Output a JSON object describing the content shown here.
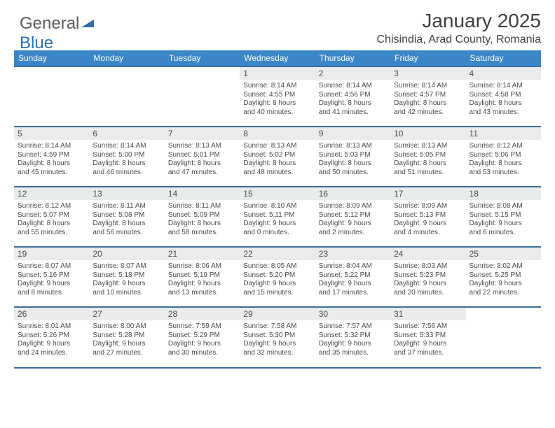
{
  "brand": {
    "part1": "General",
    "part2": "Blue",
    "triangle_color": "#2f6fb0",
    "text_color": "#5a5a5a"
  },
  "header": {
    "month_title": "January 2025",
    "location": "Chisindia, Arad County, Romania"
  },
  "theme": {
    "header_bg": "#3b86c6",
    "header_text": "#ffffff",
    "rule_color": "#3b6fa0",
    "daynum_bg": "#e9ebec",
    "body_text": "#4b4b4b",
    "page_bg": "#ffffff",
    "font_family": "Arial",
    "month_title_fontsize_pt": 21,
    "location_fontsize_pt": 12,
    "weekday_fontsize_pt": 9,
    "daynum_fontsize_pt": 9,
    "daytext_fontsize_pt": 7.5
  },
  "weekdays": [
    "Sunday",
    "Monday",
    "Tuesday",
    "Wednesday",
    "Thursday",
    "Friday",
    "Saturday"
  ],
  "weeks": [
    [
      {
        "empty": true
      },
      {
        "empty": true
      },
      {
        "empty": true
      },
      {
        "num": "1",
        "sunrise": "8:14 AM",
        "sunset": "4:55 PM",
        "daylight": "8 hours and 40 minutes."
      },
      {
        "num": "2",
        "sunrise": "8:14 AM",
        "sunset": "4:56 PM",
        "daylight": "8 hours and 41 minutes."
      },
      {
        "num": "3",
        "sunrise": "8:14 AM",
        "sunset": "4:57 PM",
        "daylight": "8 hours and 42 minutes."
      },
      {
        "num": "4",
        "sunrise": "8:14 AM",
        "sunset": "4:58 PM",
        "daylight": "8 hours and 43 minutes."
      }
    ],
    [
      {
        "num": "5",
        "sunrise": "8:14 AM",
        "sunset": "4:59 PM",
        "daylight": "8 hours and 45 minutes."
      },
      {
        "num": "6",
        "sunrise": "8:14 AM",
        "sunset": "5:00 PM",
        "daylight": "8 hours and 46 minutes."
      },
      {
        "num": "7",
        "sunrise": "8:13 AM",
        "sunset": "5:01 PM",
        "daylight": "8 hours and 47 minutes."
      },
      {
        "num": "8",
        "sunrise": "8:13 AM",
        "sunset": "5:02 PM",
        "daylight": "8 hours and 48 minutes."
      },
      {
        "num": "9",
        "sunrise": "8:13 AM",
        "sunset": "5:03 PM",
        "daylight": "8 hours and 50 minutes."
      },
      {
        "num": "10",
        "sunrise": "8:13 AM",
        "sunset": "5:05 PM",
        "daylight": "8 hours and 51 minutes."
      },
      {
        "num": "11",
        "sunrise": "8:12 AM",
        "sunset": "5:06 PM",
        "daylight": "8 hours and 53 minutes."
      }
    ],
    [
      {
        "num": "12",
        "sunrise": "8:12 AM",
        "sunset": "5:07 PM",
        "daylight": "8 hours and 55 minutes."
      },
      {
        "num": "13",
        "sunrise": "8:11 AM",
        "sunset": "5:08 PM",
        "daylight": "8 hours and 56 minutes."
      },
      {
        "num": "14",
        "sunrise": "8:11 AM",
        "sunset": "5:09 PM",
        "daylight": "8 hours and 58 minutes."
      },
      {
        "num": "15",
        "sunrise": "8:10 AM",
        "sunset": "5:11 PM",
        "daylight": "9 hours and 0 minutes."
      },
      {
        "num": "16",
        "sunrise": "8:09 AM",
        "sunset": "5:12 PM",
        "daylight": "9 hours and 2 minutes."
      },
      {
        "num": "17",
        "sunrise": "8:09 AM",
        "sunset": "5:13 PM",
        "daylight": "9 hours and 4 minutes."
      },
      {
        "num": "18",
        "sunrise": "8:08 AM",
        "sunset": "5:15 PM",
        "daylight": "9 hours and 6 minutes."
      }
    ],
    [
      {
        "num": "19",
        "sunrise": "8:07 AM",
        "sunset": "5:16 PM",
        "daylight": "9 hours and 8 minutes."
      },
      {
        "num": "20",
        "sunrise": "8:07 AM",
        "sunset": "5:18 PM",
        "daylight": "9 hours and 10 minutes."
      },
      {
        "num": "21",
        "sunrise": "8:06 AM",
        "sunset": "5:19 PM",
        "daylight": "9 hours and 13 minutes."
      },
      {
        "num": "22",
        "sunrise": "8:05 AM",
        "sunset": "5:20 PM",
        "daylight": "9 hours and 15 minutes."
      },
      {
        "num": "23",
        "sunrise": "8:04 AM",
        "sunset": "5:22 PM",
        "daylight": "9 hours and 17 minutes."
      },
      {
        "num": "24",
        "sunrise": "8:03 AM",
        "sunset": "5:23 PM",
        "daylight": "9 hours and 20 minutes."
      },
      {
        "num": "25",
        "sunrise": "8:02 AM",
        "sunset": "5:25 PM",
        "daylight": "9 hours and 22 minutes."
      }
    ],
    [
      {
        "num": "26",
        "sunrise": "8:01 AM",
        "sunset": "5:26 PM",
        "daylight": "9 hours and 24 minutes."
      },
      {
        "num": "27",
        "sunrise": "8:00 AM",
        "sunset": "5:28 PM",
        "daylight": "9 hours and 27 minutes."
      },
      {
        "num": "28",
        "sunrise": "7:59 AM",
        "sunset": "5:29 PM",
        "daylight": "9 hours and 30 minutes."
      },
      {
        "num": "29",
        "sunrise": "7:58 AM",
        "sunset": "5:30 PM",
        "daylight": "9 hours and 32 minutes."
      },
      {
        "num": "30",
        "sunrise": "7:57 AM",
        "sunset": "5:32 PM",
        "daylight": "9 hours and 35 minutes."
      },
      {
        "num": "31",
        "sunrise": "7:56 AM",
        "sunset": "5:33 PM",
        "daylight": "9 hours and 37 minutes."
      },
      {
        "empty": true
      }
    ]
  ],
  "labels": {
    "sunrise": "Sunrise:",
    "sunset": "Sunset:",
    "daylight": "Daylight:"
  }
}
